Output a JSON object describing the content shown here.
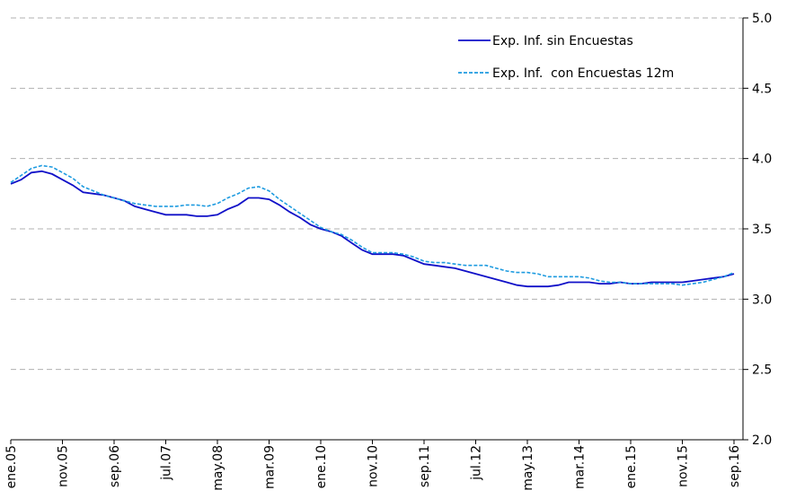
{
  "chart_data": {
    "type": "line",
    "categories": [
      "ene.05",
      null,
      null,
      null,
      null,
      "nov.05",
      null,
      null,
      null,
      null,
      "sep.06",
      null,
      null,
      null,
      null,
      "jul.07",
      null,
      null,
      null,
      null,
      "may.08",
      null,
      null,
      null,
      null,
      "mar.09",
      null,
      null,
      null,
      null,
      "ene.10",
      null,
      null,
      null,
      null,
      "nov.10",
      null,
      null,
      null,
      null,
      "sep.11",
      null,
      null,
      null,
      null,
      "jul.12",
      null,
      null,
      null,
      null,
      "may.13",
      null,
      null,
      null,
      null,
      "mar.14",
      null,
      null,
      null,
      null,
      "ene.15",
      null,
      null,
      null,
      null,
      "nov.15",
      null,
      null,
      null,
      null,
      "sep.16"
    ],
    "series": [
      {
        "name": "Exp. Inf. sin Encuestas",
        "color": "#1010c8",
        "dash": false,
        "values": [
          3.82,
          3.85,
          3.9,
          3.91,
          3.89,
          3.85,
          3.81,
          3.76,
          3.75,
          3.74,
          3.72,
          3.7,
          3.66,
          3.64,
          3.62,
          3.6,
          3.6,
          3.6,
          3.59,
          3.59,
          3.6,
          3.64,
          3.67,
          3.72,
          3.72,
          3.71,
          3.67,
          3.62,
          3.58,
          3.53,
          3.5,
          3.48,
          3.45,
          3.4,
          3.35,
          3.32,
          3.32,
          3.32,
          3.31,
          3.28,
          3.25,
          3.24,
          3.23,
          3.22,
          3.2,
          3.18,
          3.16,
          3.14,
          3.12,
          3.1,
          3.09,
          3.09,
          3.09,
          3.1,
          3.12,
          3.12,
          3.12,
          3.11,
          3.11,
          3.12,
          3.11,
          3.11,
          3.12,
          3.12,
          3.12,
          3.12,
          3.13,
          3.14,
          3.15,
          3.16,
          3.18
        ]
      },
      {
        "name": "Exp. Inf.  con Encuestas 12m",
        "color": "#1e9be0",
        "dash": true,
        "values": [
          3.83,
          3.88,
          3.93,
          3.95,
          3.94,
          3.9,
          3.86,
          3.8,
          3.77,
          3.74,
          3.72,
          3.7,
          3.68,
          3.67,
          3.66,
          3.66,
          3.66,
          3.67,
          3.67,
          3.66,
          3.68,
          3.72,
          3.75,
          3.79,
          3.8,
          3.77,
          3.71,
          3.66,
          3.61,
          3.56,
          3.51,
          3.48,
          3.46,
          3.42,
          3.37,
          3.33,
          3.33,
          3.33,
          3.32,
          3.3,
          3.27,
          3.26,
          3.26,
          3.25,
          3.24,
          3.24,
          3.24,
          3.22,
          3.2,
          3.19,
          3.19,
          3.18,
          3.16,
          3.16,
          3.16,
          3.16,
          3.15,
          3.13,
          3.12,
          3.12,
          3.11,
          3.11,
          3.11,
          3.11,
          3.11,
          3.1,
          3.11,
          3.12,
          3.14,
          3.16,
          3.19
        ]
      }
    ],
    "ylim": [
      2.0,
      5.0
    ],
    "yticks": [
      {
        "value": 2.0,
        "label": "2.0"
      },
      {
        "value": 2.5,
        "label": "2.5"
      },
      {
        "value": 3.0,
        "label": "3.0"
      },
      {
        "value": 3.5,
        "label": "3.5"
      },
      {
        "value": 4.0,
        "label": "4.0"
      },
      {
        "value": 4.5,
        "label": "4.5"
      },
      {
        "value": 5.0,
        "label": "5.0"
      }
    ],
    "y_axis_side": "right",
    "grid": true,
    "legend": "upper right"
  }
}
